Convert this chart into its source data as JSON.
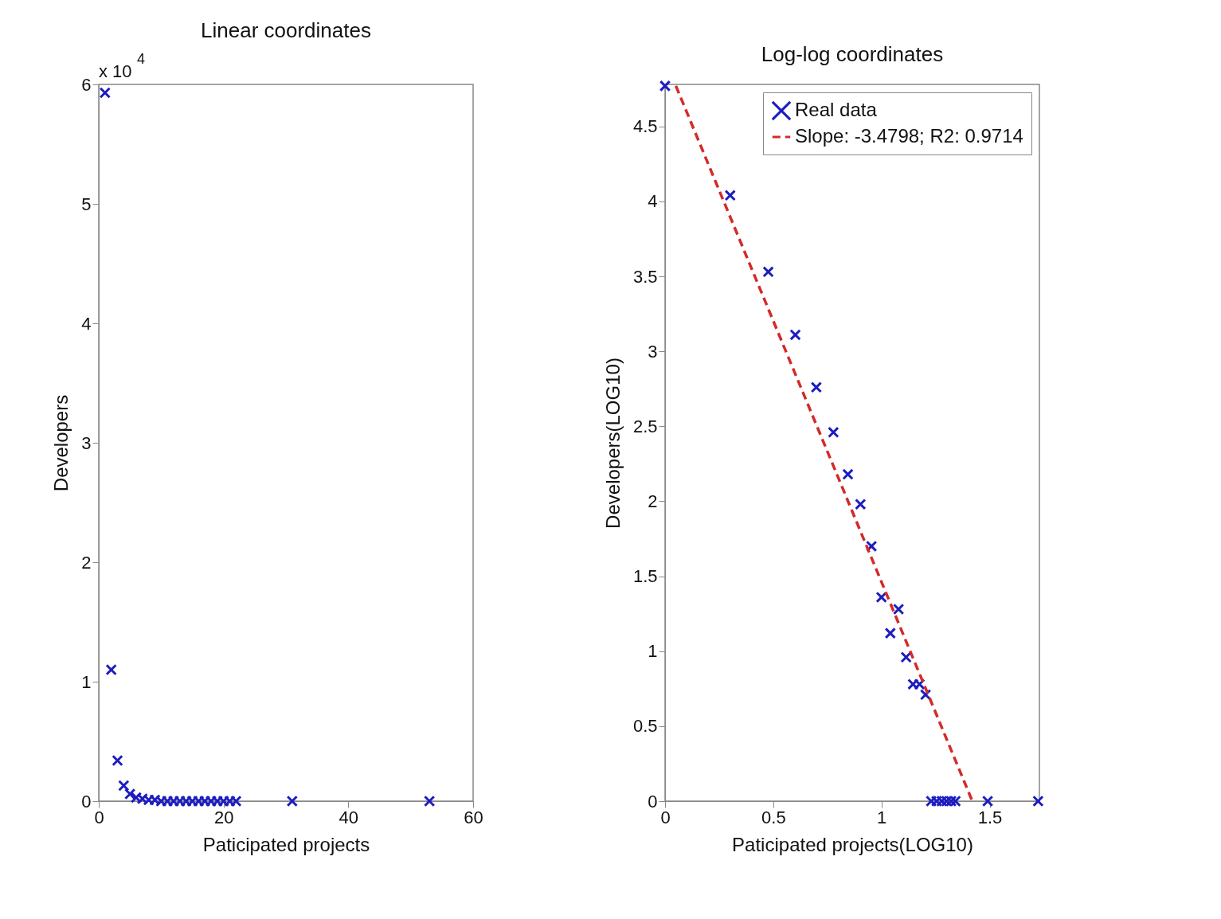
{
  "chart_data": [
    {
      "type": "scatter",
      "title": "Linear coordinates",
      "xlabel": "Paticipated projects",
      "ylabel": "Developers",
      "annotations": [
        "x 10$^{4}$"
      ],
      "marker": "cross",
      "color": "#1c1cc0",
      "x": [
        1,
        2,
        3,
        4,
        5,
        6,
        7,
        8,
        9,
        10,
        11,
        12,
        13,
        14,
        15,
        16,
        17,
        18,
        19,
        20,
        21,
        22,
        31,
        53
      ],
      "values": [
        5.93,
        1.1,
        0.34,
        0.13,
        0.06,
        0.03,
        0.02,
        0.01,
        0.01,
        0,
        0,
        0,
        0,
        0,
        0,
        0,
        0,
        0,
        0,
        0,
        0,
        0,
        0,
        0
      ],
      "xlim": [
        0,
        60
      ],
      "xticks": [
        0,
        20,
        40,
        60
      ],
      "ylim": [
        0,
        6
      ],
      "yticks": [
        0,
        1,
        2,
        3,
        4,
        5,
        6
      ]
    },
    {
      "type": "scatter",
      "title": "Log-log coordinates",
      "xlabel": "Paticipated projects(LOG10)",
      "ylabel": "Developers(LOG10)",
      "legend": "top right",
      "series": [
        {
          "name": "Real data",
          "marker": "cross",
          "color": "#1c1cc0",
          "x": [
            0,
            0.301,
            0.477,
            0.602,
            0.699,
            0.778,
            0.845,
            0.903,
            0.954,
            1,
            1.041,
            1.079,
            1.114,
            1.146,
            1.176,
            1.204,
            1.23,
            1.255,
            1.279,
            1.301,
            1.322,
            1.342,
            1.491,
            1.724
          ],
          "values": [
            4.77,
            4.04,
            3.53,
            3.11,
            2.76,
            2.46,
            2.18,
            1.98,
            1.7,
            1.36,
            1.12,
            1.28,
            0.96,
            0.78,
            0.78,
            0.71,
            0,
            0,
            0,
            0,
            0,
            0,
            0,
            0
          ]
        },
        {
          "name": "Slope: -3.4798; R2: 0.9714",
          "type": "line",
          "line_style": "dashed",
          "color": "#d42a2a",
          "x": [
            0.05,
            1.42
          ],
          "values": [
            4.77,
            0
          ]
        }
      ],
      "xlim": [
        0,
        1.73
      ],
      "xticks": [
        0,
        0.5,
        1,
        1.5
      ],
      "ylim": [
        0,
        4.78
      ],
      "yticks": [
        0,
        0.5,
        1,
        1.5,
        2,
        2.5,
        3,
        3.5,
        4,
        4.5
      ]
    }
  ]
}
